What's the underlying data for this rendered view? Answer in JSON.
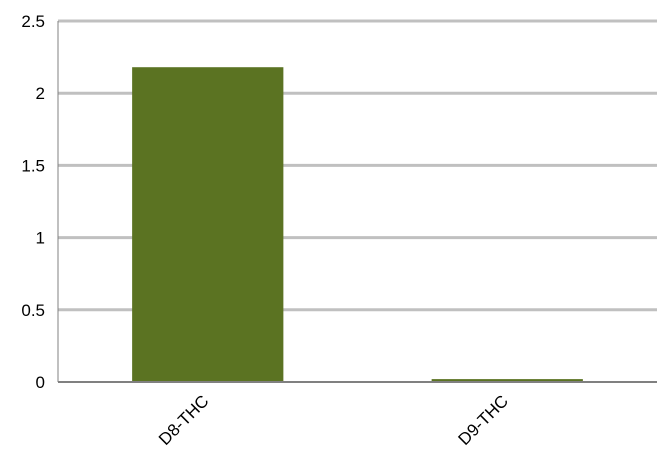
{
  "chart_data": {
    "type": "bar",
    "categories": [
      "D8-THC",
      "D9-THC"
    ],
    "values": [
      2.18,
      0.02
    ],
    "title": "",
    "xlabel": "",
    "ylabel": "",
    "ylim": [
      0,
      2.5
    ],
    "yticks": [
      "0",
      "0.5",
      "1",
      "1.5",
      "2",
      "2.5"
    ],
    "grid": true,
    "legend": "none",
    "colors": {
      "bar": "#5b7322",
      "grid": "#c0c0c0",
      "axis": "#808080"
    }
  }
}
